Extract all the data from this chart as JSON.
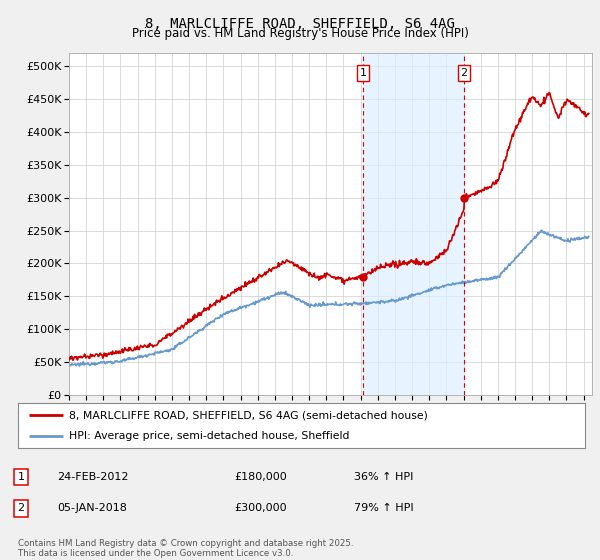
{
  "title_line1": "8, MARLCLIFFE ROAD, SHEFFIELD, S6 4AG",
  "title_line2": "Price paid vs. HM Land Registry's House Price Index (HPI)",
  "bg_color": "#f0f0f0",
  "plot_bg_color": "#ffffff",
  "grid_color": "#cccccc",
  "red_color": "#cc0000",
  "blue_color": "#6699cc",
  "vline_color": "#dd0000",
  "vline1_x": 2012.15,
  "vline2_x": 2018.03,
  "marker1_date": "24-FEB-2012",
  "marker1_price": "£180,000",
  "marker1_hpi": "36% ↑ HPI",
  "marker1_price_val": 180000,
  "marker1_year": 2012.15,
  "marker2_date": "05-JAN-2018",
  "marker2_price": "£300,000",
  "marker2_hpi": "79% ↑ HPI",
  "marker2_price_val": 300000,
  "marker2_year": 2018.03,
  "legend_line1": "8, MARLCLIFFE ROAD, SHEFFIELD, S6 4AG (semi-detached house)",
  "legend_line2": "HPI: Average price, semi-detached house, Sheffield",
  "footer": "Contains HM Land Registry data © Crown copyright and database right 2025.\nThis data is licensed under the Open Government Licence v3.0.",
  "xmin": 1995,
  "xmax": 2025.5,
  "ymin": 0,
  "ymax": 520000
}
